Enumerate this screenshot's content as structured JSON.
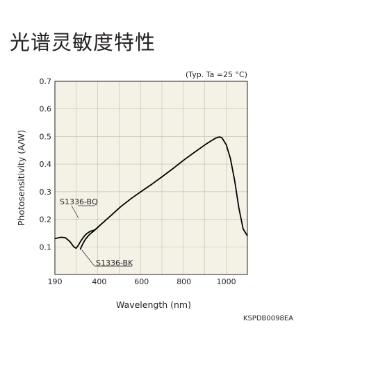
{
  "title": "光谱灵敏度特性",
  "condition": "(Typ. Ta =25 °C)",
  "doc_code": "KSPDB0098EA",
  "colors": {
    "plot_bg": "#f4f2e6",
    "grid": "#c8c3b0",
    "curve": "#000000",
    "text": "#231f20"
  },
  "chart_data": {
    "type": "line",
    "title": "光谱灵敏度特性",
    "xlabel": "Wavelength (nm)",
    "ylabel": "Photosensitivity (A/W)",
    "xlim": [
      190,
      1100
    ],
    "ylim": [
      0,
      0.7
    ],
    "x_ticks": [
      190,
      400,
      600,
      800,
      1000
    ],
    "y_ticks": [
      0.1,
      0.2,
      0.3,
      0.4,
      0.5,
      0.6,
      0.7
    ],
    "x_tick_labels": [
      "190",
      "400",
      "600",
      "800",
      "1000"
    ],
    "y_tick_labels": [
      "0.1",
      "0.2",
      "0.3",
      "0.4",
      "0.5",
      "0.6",
      "0.7"
    ],
    "grid": true,
    "series": [
      {
        "name": "S1336-BQ",
        "x": [
          190,
          200,
          220,
          240,
          260,
          280,
          290,
          300,
          310,
          320,
          330,
          340,
          350,
          360,
          380,
          400,
          450,
          500,
          550,
          600,
          650,
          700,
          750,
          800,
          850,
          900,
          930,
          950,
          960,
          970,
          980,
          1000,
          1020,
          1040,
          1060,
          1080,
          1100
        ],
        "y": [
          0.13,
          0.132,
          0.135,
          0.133,
          0.12,
          0.1,
          0.095,
          0.105,
          0.118,
          0.13,
          0.14,
          0.148,
          0.153,
          0.157,
          0.162,
          0.176,
          0.21,
          0.245,
          0.275,
          0.302,
          0.328,
          0.356,
          0.385,
          0.415,
          0.443,
          0.47,
          0.485,
          0.494,
          0.497,
          0.498,
          0.495,
          0.47,
          0.42,
          0.34,
          0.24,
          0.165,
          0.14
        ]
      },
      {
        "name": "S1336-BK",
        "x": [
          310,
          315,
          320,
          325,
          330,
          335,
          340,
          345,
          350,
          360,
          370,
          380,
          390,
          400
        ],
        "y": [
          0.09,
          0.1,
          0.108,
          0.115,
          0.122,
          0.128,
          0.133,
          0.138,
          0.142,
          0.149,
          0.155,
          0.162,
          0.169,
          0.176
        ]
      }
    ],
    "annotations": [
      "S1336-BQ",
      "S1336-BK"
    ]
  }
}
